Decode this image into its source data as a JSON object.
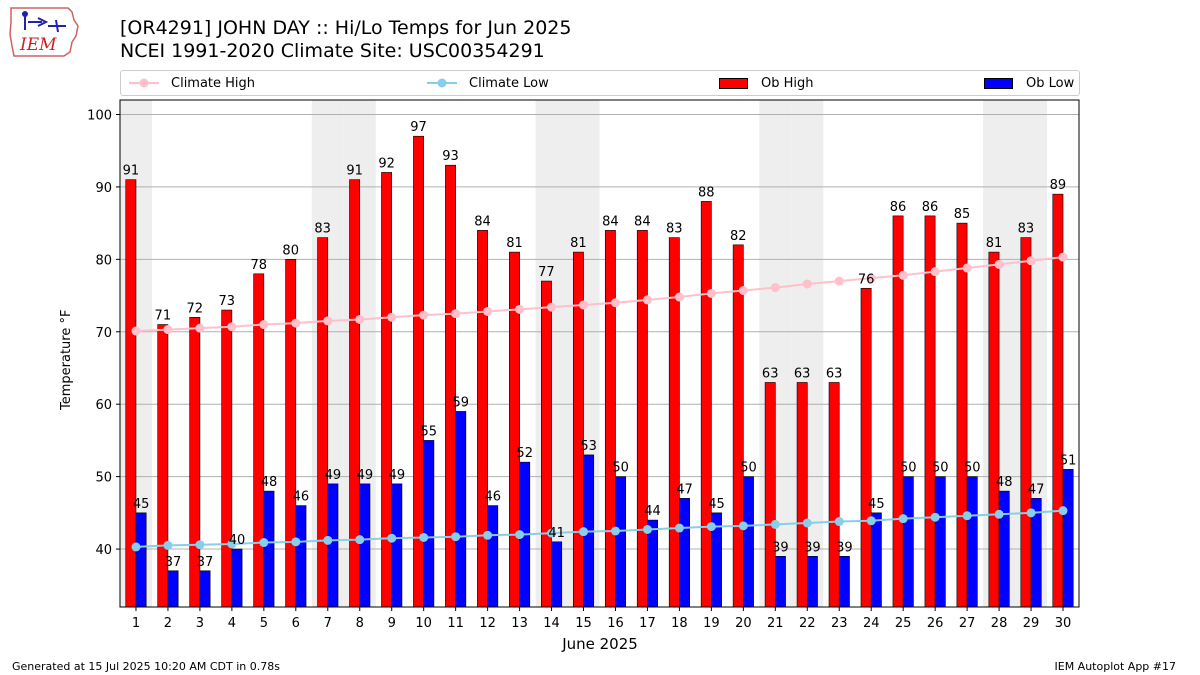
{
  "header": {
    "title_line1": "[OR4291] JOHN DAY :: Hi/Lo Temps for Jun 2025",
    "title_line2": "NCEI 1991-2020 Climate Site: USC00354291",
    "logo_text": "IEM"
  },
  "footer": {
    "left": "Generated at 15 Jul 2025 10:20 AM CDT in 0.78s",
    "right": "IEM Autoplot App #17"
  },
  "colors": {
    "ob_high": "#ff0000",
    "ob_low": "#0000ff",
    "climate_high": "#ffc0cb",
    "climate_low": "#87ceeb",
    "weekend_band": "#eeeeee",
    "grid": "#b0b0b0"
  },
  "chart_data": {
    "type": "bar",
    "title": "[OR4291] JOHN DAY :: Hi/Lo Temps for Jun 2025",
    "subtitle": "NCEI 1991-2020 Climate Site: USC00354291",
    "xlabel": "June 2025",
    "ylabel": "Temperature °F",
    "ylim": [
      32,
      102
    ],
    "yticks": [
      40,
      50,
      60,
      70,
      80,
      90,
      100
    ],
    "grid": true,
    "legend_position": "top",
    "categories": [
      "1",
      "2",
      "3",
      "4",
      "5",
      "6",
      "7",
      "8",
      "9",
      "10",
      "11",
      "12",
      "13",
      "14",
      "15",
      "16",
      "17",
      "18",
      "19",
      "20",
      "21",
      "22",
      "23",
      "24",
      "25",
      "26",
      "27",
      "28",
      "29",
      "30"
    ],
    "weekend_days": [
      1,
      7,
      8,
      14,
      15,
      21,
      22,
      28,
      29
    ],
    "series": [
      {
        "name": "Ob High",
        "kind": "bar",
        "values": [
          91,
          71,
          72,
          73,
          78,
          80,
          83,
          91,
          92,
          97,
          93,
          84,
          81,
          77,
          81,
          84,
          84,
          83,
          88,
          82,
          63,
          63,
          63,
          76,
          86,
          86,
          85,
          81,
          83,
          89
        ]
      },
      {
        "name": "Ob Low",
        "kind": "bar",
        "values": [
          45,
          37,
          37,
          40,
          48,
          46,
          49,
          49,
          49,
          55,
          59,
          46,
          52,
          41,
          53,
          50,
          44,
          47,
          45,
          50,
          39,
          39,
          39,
          45,
          50,
          50,
          50,
          48,
          47,
          51
        ]
      },
      {
        "name": "Climate High",
        "kind": "line",
        "values": [
          70.1,
          70.3,
          70.5,
          70.7,
          71.0,
          71.2,
          71.5,
          71.7,
          72.0,
          72.3,
          72.5,
          72.8,
          73.1,
          73.4,
          73.7,
          74.0,
          74.4,
          74.8,
          75.3,
          75.7,
          76.1,
          76.6,
          77.0,
          77.4,
          77.8,
          78.3,
          78.8,
          79.3,
          79.8,
          80.3
        ]
      },
      {
        "name": "Climate Low",
        "kind": "line",
        "values": [
          40.3,
          40.5,
          40.6,
          40.7,
          40.9,
          41.0,
          41.2,
          41.3,
          41.5,
          41.6,
          41.7,
          41.9,
          42.0,
          42.2,
          42.4,
          42.5,
          42.7,
          42.9,
          43.1,
          43.2,
          43.4,
          43.6,
          43.8,
          43.9,
          44.2,
          44.4,
          44.6,
          44.8,
          45.0,
          45.3
        ]
      }
    ]
  }
}
